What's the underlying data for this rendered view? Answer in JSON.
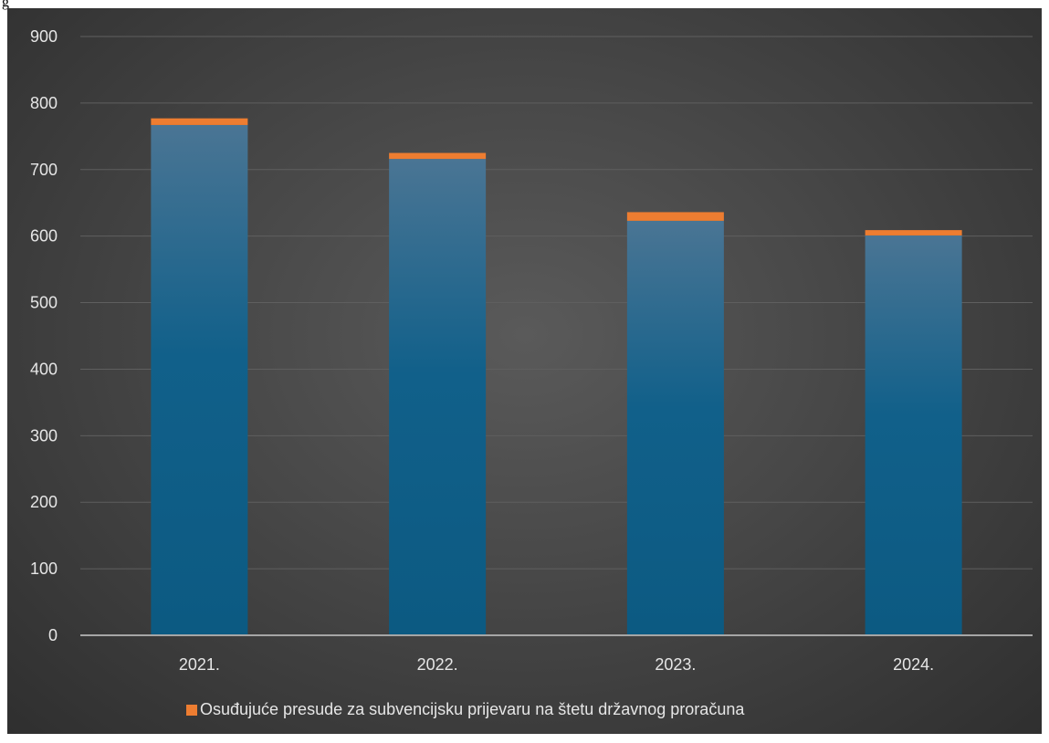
{
  "caption": "g",
  "colors": {
    "bar_main_top": "#4a7594",
    "bar_main_bottom": "#0c5a82",
    "bar_top_segment": "#ed7d31",
    "grid": "#5f5f5f",
    "axis": "#a6a6a6"
  },
  "chart_data": {
    "type": "bar",
    "stacked": true,
    "categories": [
      "2021.",
      "2022.",
      "2023.",
      "2024."
    ],
    "series": [
      {
        "values": [
          767,
          716,
          623,
          601
        ]
      },
      {
        "name": "Osuđujuće presude za subvencijsku prijevaru na štetu državnog proračuna",
        "values": [
          10,
          9,
          13,
          8
        ]
      }
    ],
    "ylim": [
      0,
      900
    ],
    "yticks": [
      0,
      100,
      200,
      300,
      400,
      500,
      600,
      700,
      800,
      900
    ],
    "grid": true,
    "legend_position": "bottom"
  },
  "legend": {
    "label": "Osuđujuće presude za subvencijsku prijevaru na štetu državnog proračuna"
  }
}
